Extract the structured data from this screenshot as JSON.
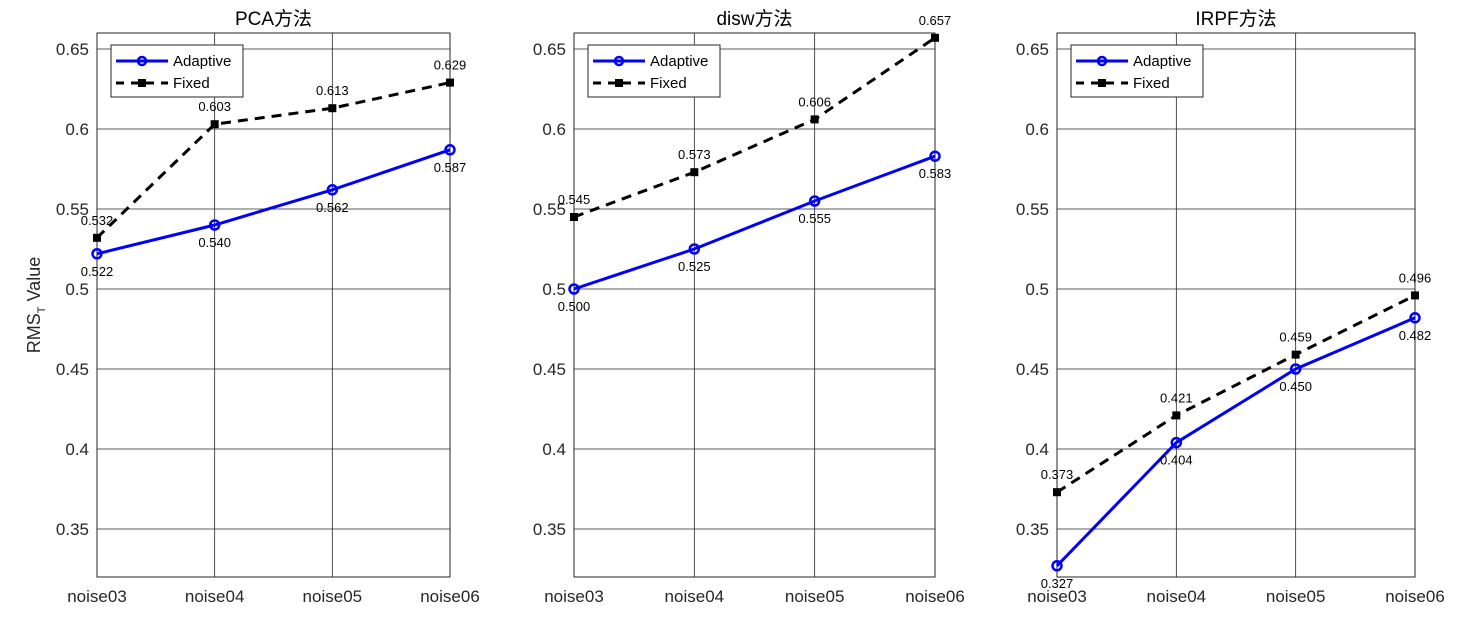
{
  "chart_data": [
    {
      "type": "line",
      "title": "PCA方法",
      "xlabel": "",
      "ylabel": "RMS",
      "ylabel_sub": "T",
      "ylabel_suffix": " Value",
      "categories": [
        "noise03",
        "noise04",
        "noise05",
        "noise06"
      ],
      "ylim": [
        0.32,
        0.66
      ],
      "yticks": [
        0.35,
        0.4,
        0.45,
        0.5,
        0.55,
        0.6,
        0.65
      ],
      "ytick_labels": [
        "0.35",
        "0.4",
        "0.45",
        "0.5",
        "0.55",
        "0.6",
        "0.65"
      ],
      "grid": true,
      "legend": "top-left",
      "series": [
        {
          "name": "Adaptive",
          "color": "#0000ff",
          "values": [
            0.522,
            0.54,
            0.562,
            0.587
          ],
          "labels": [
            "0.522",
            "0.540",
            "0.562",
            "0.587"
          ]
        },
        {
          "name": "Fixed",
          "color": "#000000",
          "values": [
            0.532,
            0.603,
            0.613,
            0.629
          ],
          "labels": [
            "0.532",
            "0.603",
            "0.613",
            "0.629"
          ]
        }
      ]
    },
    {
      "type": "line",
      "title": "disw方法",
      "xlabel": "",
      "ylabel": "",
      "categories": [
        "noise03",
        "noise04",
        "noise05",
        "noise06"
      ],
      "ylim": [
        0.32,
        0.66
      ],
      "yticks": [
        0.35,
        0.4,
        0.45,
        0.5,
        0.55,
        0.6,
        0.65
      ],
      "ytick_labels": [
        "0.35",
        "0.4",
        "0.45",
        "0.5",
        "0.55",
        "0.6",
        "0.65"
      ],
      "grid": true,
      "legend": "top-left",
      "series": [
        {
          "name": "Adaptive",
          "color": "#0000ff",
          "values": [
            0.5,
            0.525,
            0.555,
            0.583
          ],
          "labels": [
            "0.500",
            "0.525",
            "0.555",
            "0.583"
          ]
        },
        {
          "name": "Fixed",
          "color": "#000000",
          "values": [
            0.545,
            0.573,
            0.606,
            0.657
          ],
          "labels": [
            "0.545",
            "0.573",
            "0.606",
            "0.657"
          ]
        }
      ]
    },
    {
      "type": "line",
      "title": "IRPF方法",
      "xlabel": "",
      "ylabel": "",
      "categories": [
        "noise03",
        "noise04",
        "noise05",
        "noise06"
      ],
      "ylim": [
        0.32,
        0.66
      ],
      "yticks": [
        0.35,
        0.4,
        0.45,
        0.5,
        0.55,
        0.6,
        0.65
      ],
      "ytick_labels": [
        "0.35",
        "0.4",
        "0.45",
        "0.5",
        "0.55",
        "0.6",
        "0.65"
      ],
      "grid": true,
      "legend": "top-left",
      "series": [
        {
          "name": "Adaptive",
          "color": "#0000ff",
          "values": [
            0.327,
            0.404,
            0.45,
            0.482
          ],
          "labels": [
            "0.327",
            "0.404",
            "0.450",
            "0.482"
          ]
        },
        {
          "name": "Fixed",
          "color": "#000000",
          "values": [
            0.373,
            0.421,
            0.459,
            0.496
          ],
          "labels": [
            "0.373",
            "0.421",
            "0.459",
            "0.496"
          ]
        }
      ]
    }
  ]
}
